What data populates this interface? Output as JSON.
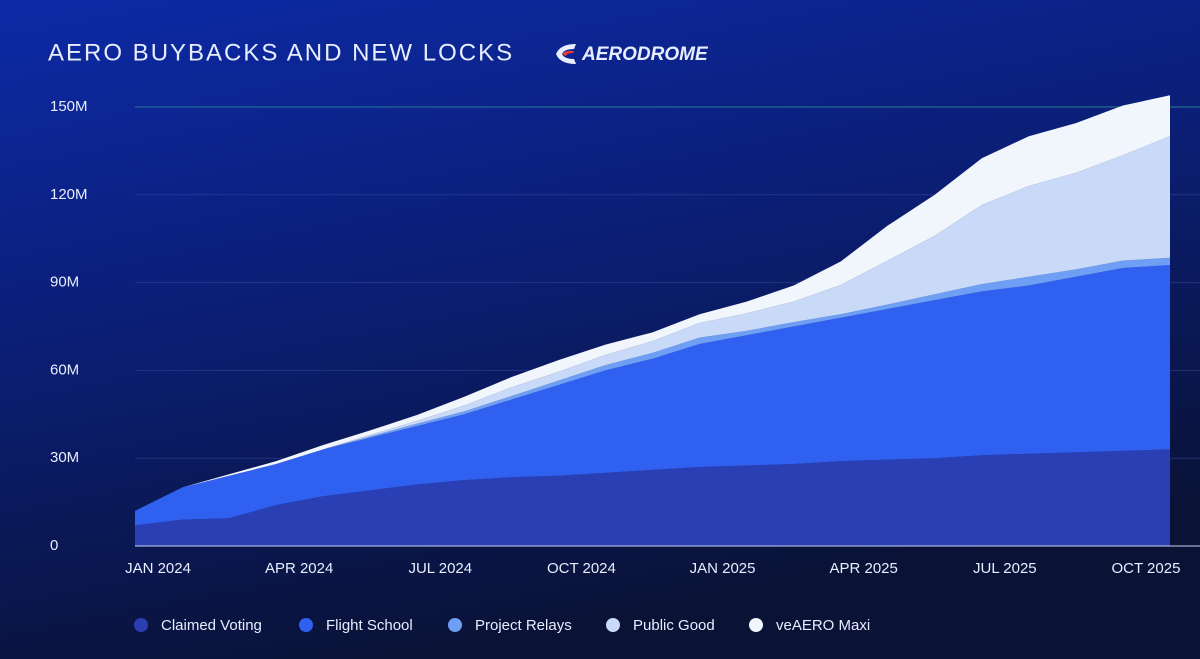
{
  "chart_data": {
    "type": "stacked-area",
    "title": "AERO BUYBACKS AND NEW LOCKS",
    "brand": "AERODROME",
    "categories": [
      "JAN 2024",
      null,
      null,
      "APR 2024",
      null,
      null,
      "JUL 2024",
      null,
      null,
      "OCT 2024",
      null,
      null,
      "JAN 2025",
      null,
      null,
      "APR 2025",
      null,
      null,
      "JUL 2025",
      null,
      null,
      "OCT 2025",
      null
    ],
    "series": [
      {
        "name": "Claimed Voting",
        "color": "#2b3fb4",
        "values": [
          7,
          9,
          9.5,
          14,
          17,
          19,
          21,
          22.5,
          23.5,
          24,
          25,
          26,
          27,
          27.5,
          28,
          29,
          29.5,
          30,
          31,
          31.5,
          32,
          32.5,
          33
        ]
      },
      {
        "name": "Flight School",
        "color": "#3060f0",
        "values": [
          5,
          11,
          14.5,
          14,
          16,
          18,
          20,
          22.5,
          26.5,
          31,
          35,
          38,
          42,
          44.5,
          47,
          49,
          51.5,
          54,
          56,
          57.5,
          60,
          62.5,
          63
        ]
      },
      {
        "name": "Project Relays",
        "color": "#6f9ff5",
        "values": [
          0,
          0,
          0,
          0,
          0,
          0.5,
          0.8,
          1,
          1.2,
          1.5,
          1.8,
          2,
          2.2,
          1.5,
          1.5,
          1.2,
          1.5,
          2,
          2.5,
          3,
          2.5,
          2.5,
          2.5
        ]
      },
      {
        "name": "Public Good",
        "color": "#c9d9f8",
        "values": [
          0,
          0,
          0,
          0,
          0,
          0.5,
          1,
          2,
          3,
          3,
          3.5,
          4,
          5,
          6,
          7,
          10,
          15,
          20,
          27,
          31,
          33,
          36,
          41.5
        ]
      },
      {
        "name": "veAERO Maxi",
        "color": "#f1f5fc",
        "values": [
          0,
          0,
          0.5,
          1,
          1.5,
          1.5,
          2,
          3,
          3.5,
          4,
          3.5,
          3,
          3,
          4,
          5.5,
          8,
          12,
          14,
          16,
          17,
          17,
          17,
          14
        ]
      }
    ],
    "ylim": [
      0,
      150
    ],
    "yticks": [
      0,
      {
        "value": 30,
        "label": "30M"
      },
      {
        "value": 60,
        "label": "60M"
      },
      {
        "value": 90,
        "label": "90M"
      },
      {
        "value": 120,
        "label": "120M"
      },
      {
        "value": 150,
        "label": "150M"
      }
    ],
    "grid": true,
    "legend": "bottom"
  }
}
